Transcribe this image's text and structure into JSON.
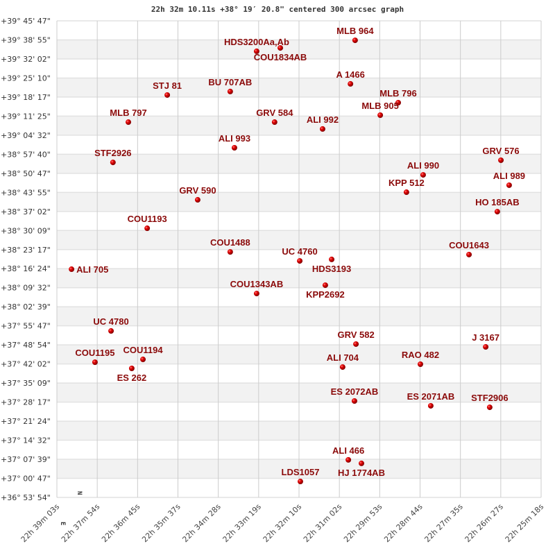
{
  "chart_data": {
    "type": "scatter",
    "title": "22h 32m 10.11s +38° 19′ 20.8\" centered 300 arcsec graph",
    "xlabel": "",
    "ylabel": "",
    "x_axis": "right ascension (hours), decreasing to the right",
    "xlim_hours": [
      22.65083,
      22.42167
    ],
    "ylim_deg": [
      36.89833,
      39.76306
    ],
    "grid": true,
    "compass": {
      "north": "N",
      "east": "E"
    },
    "colors": {
      "point": "#dd0000",
      "label": "#8b0a0a",
      "band": "#f2f2f2",
      "grid": "#cccccc"
    },
    "x_ticks": [
      "22h 39m 03s",
      "22h 37m 54s",
      "22h 36m 45s",
      "22h 35m 37s",
      "22h 34m 28s",
      "22h 33m 19s",
      "22h 32m 10s",
      "22h 31m 02s",
      "22h 29m 53s",
      "22h 28m 44s",
      "22h 27m 35s",
      "22h 26m 27s",
      "22h 25m 18s"
    ],
    "y_ticks": [
      "+39° 45' 47\"",
      "+39° 38' 55\"",
      "+39° 32' 02\"",
      "+39° 25' 10\"",
      "+39° 18' 17\"",
      "+39° 11' 25\"",
      "+39° 04' 32\"",
      "+38° 57' 40\"",
      "+38° 50' 47\"",
      "+38° 43' 55\"",
      "+38° 37' 02\"",
      "+38° 30' 09\"",
      "+38° 23' 17\"",
      "+38° 16' 24\"",
      "+38° 09' 32\"",
      "+38° 02' 39\"",
      "+37° 55' 47\"",
      "+37° 48' 54\"",
      "+37° 42' 02\"",
      "+37° 35' 09\"",
      "+37° 28' 17\"",
      "+37° 21' 24\"",
      "+37° 14' 32\"",
      "+37° 07' 39\"",
      "+37° 00' 47\"",
      "+36° 53' 54\""
    ],
    "points": [
      {
        "name": "HDS3200Aa,Ab",
        "ra": 22.5563,
        "dec": 39.58
      },
      {
        "name": "COU1834AB",
        "ra": 22.5451,
        "dec": 39.6
      },
      {
        "name": "MLB 964",
        "ra": 22.5097,
        "dec": 39.646
      },
      {
        "name": "A  1466",
        "ra": 22.5119,
        "dec": 39.384
      },
      {
        "name": "STJ  81",
        "ra": 22.5986,
        "dec": 39.317
      },
      {
        "name": "BU  707AB",
        "ra": 22.5688,
        "dec": 39.338
      },
      {
        "name": "MLB 796",
        "ra": 22.4893,
        "dec": 39.271
      },
      {
        "name": "MLB 905",
        "ra": 22.4978,
        "dec": 39.196
      },
      {
        "name": "MLB 797",
        "ra": 22.617,
        "dec": 39.154
      },
      {
        "name": "GRV 584",
        "ra": 22.5478,
        "dec": 39.154
      },
      {
        "name": "ALI 992",
        "ra": 22.5251,
        "dec": 39.113
      },
      {
        "name": "ALI 993",
        "ra": 22.5668,
        "dec": 39.0
      },
      {
        "name": "STF2926",
        "ra": 22.6243,
        "dec": 38.912
      },
      {
        "name": "GRV 576",
        "ra": 22.4407,
        "dec": 38.925
      },
      {
        "name": "ALI 990",
        "ra": 22.4775,
        "dec": 38.837
      },
      {
        "name": "ALI 989",
        "ra": 22.4368,
        "dec": 38.775
      },
      {
        "name": "KPP 512",
        "ra": 22.4854,
        "dec": 38.733
      },
      {
        "name": "GRV 590",
        "ra": 22.5842,
        "dec": 38.687
      },
      {
        "name": "HO  185AB",
        "ra": 22.4424,
        "dec": 38.616
      },
      {
        "name": "COU1193",
        "ra": 22.6081,
        "dec": 38.516
      },
      {
        "name": "COU1488",
        "ra": 22.5688,
        "dec": 38.374
      },
      {
        "name": "UC 4760",
        "ra": 22.5359,
        "dec": 38.32
      },
      {
        "name": "HDS3193",
        "ra": 22.5208,
        "dec": 38.329
      },
      {
        "name": "COU1643",
        "ra": 22.4558,
        "dec": 38.358
      },
      {
        "name": "ALI 705",
        "ra": 22.6439,
        "dec": 38.27
      },
      {
        "name": "KPP2692",
        "ra": 22.5238,
        "dec": 38.174
      },
      {
        "name": "COU1343AB",
        "ra": 22.5563,
        "dec": 38.124
      },
      {
        "name": "UC 4780",
        "ra": 22.6252,
        "dec": 37.899
      },
      {
        "name": "GRV 582",
        "ra": 22.5093,
        "dec": 37.82
      },
      {
        "name": "J  3167",
        "ra": 22.4479,
        "dec": 37.803
      },
      {
        "name": "COU1195",
        "ra": 22.6328,
        "dec": 37.711
      },
      {
        "name": "COU1194",
        "ra": 22.6101,
        "dec": 37.728
      },
      {
        "name": "ES  262",
        "ra": 22.6154,
        "dec": 37.674
      },
      {
        "name": "ALI 704",
        "ra": 22.5156,
        "dec": 37.682
      },
      {
        "name": "RAO 482",
        "ra": 22.4788,
        "dec": 37.699
      },
      {
        "name": "ES 2072AB",
        "ra": 22.51,
        "dec": 37.478
      },
      {
        "name": "ES 2071AB",
        "ra": 22.4739,
        "dec": 37.449
      },
      {
        "name": "STF2906",
        "ra": 22.446,
        "dec": 37.44
      },
      {
        "name": "ALI 466",
        "ra": 22.5129,
        "dec": 37.124
      },
      {
        "name": "HJ 1774AB",
        "ra": 22.5067,
        "dec": 37.103
      },
      {
        "name": "LDS1057",
        "ra": 22.5356,
        "dec": 36.994
      }
    ]
  }
}
